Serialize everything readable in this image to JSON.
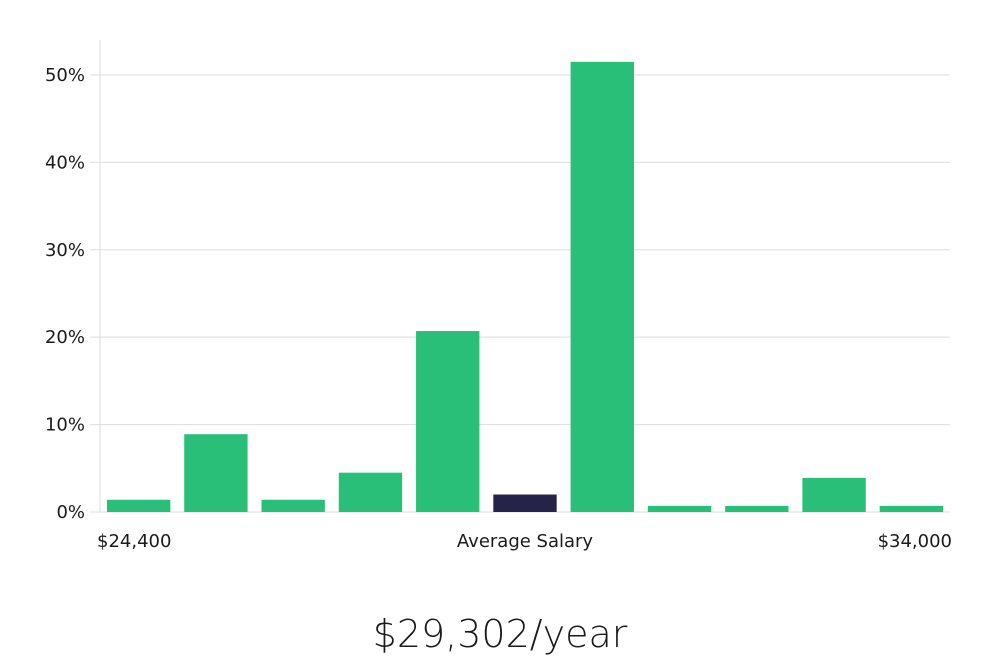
{
  "chart_data": {
    "type": "bar",
    "title": "",
    "xlabel": "",
    "ylabel": "",
    "ylim": [
      0,
      54
    ],
    "yticks": [
      0,
      10,
      20,
      30,
      40,
      50
    ],
    "ytick_labels": [
      "0%",
      "10%",
      "20%",
      "30%",
      "40%",
      "50%"
    ],
    "grid": true,
    "values": [
      1.4,
      8.9,
      1.4,
      4.5,
      20.7,
      2.0,
      51.5,
      0.7,
      0.7,
      3.9,
      0.7
    ],
    "highlight_index": 5,
    "x_labels": {
      "left": "$24,400",
      "center": "Average Salary",
      "right": "$34,000"
    }
  },
  "colors": {
    "bar": "#29bf79",
    "highlight": "#252347",
    "grid": "#dddddd",
    "axis": "#dddddd",
    "text": "#1b1b1b"
  },
  "summary": {
    "salary": "$29,302/year"
  }
}
